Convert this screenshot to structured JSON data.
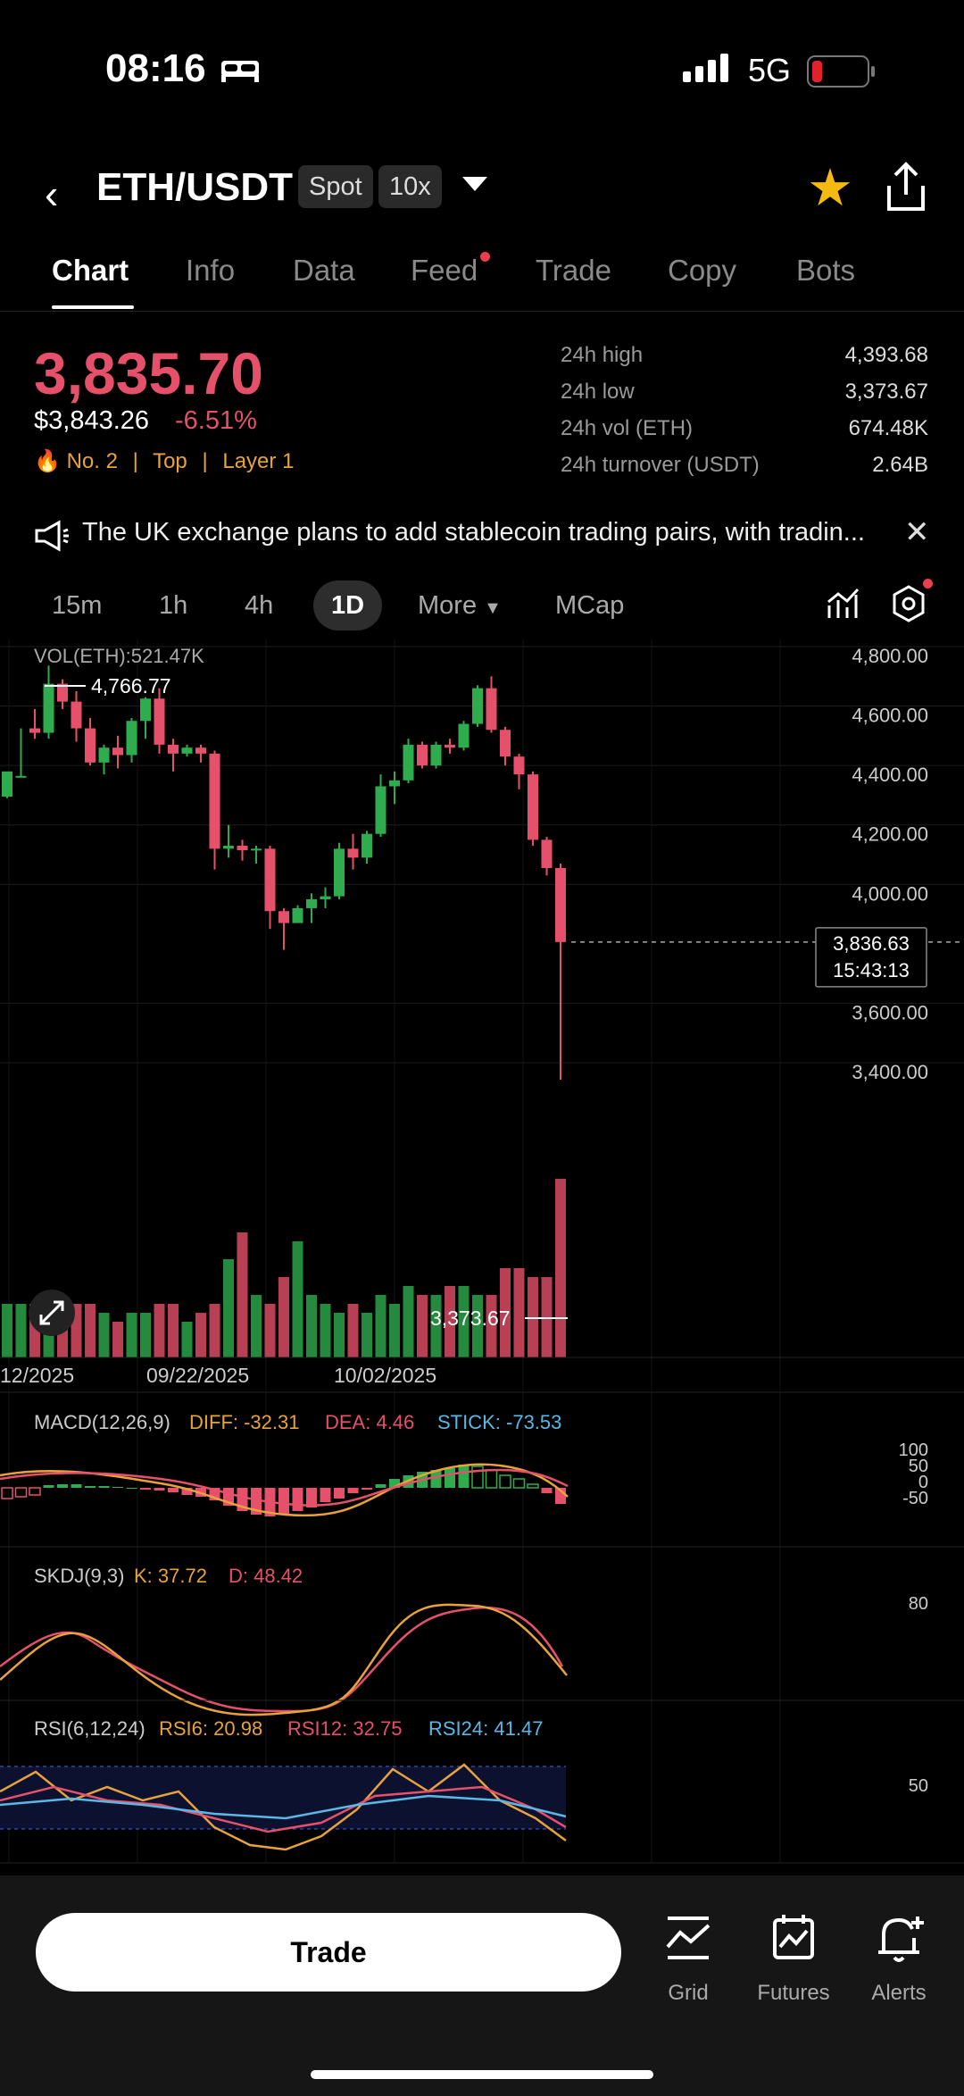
{
  "status": {
    "time": "08:16",
    "network": "5G"
  },
  "header": {
    "pair": "ETH/USDT",
    "market": "Spot",
    "leverage": "10x"
  },
  "tabs": [
    "Chart",
    "Info",
    "Data",
    "Feed",
    "Trade",
    "Copy",
    "Bots"
  ],
  "ticker": {
    "last": "3,835.70",
    "usd": "$3,843.26",
    "change": "-6.51%",
    "rank": "No. 2",
    "tag1": "Top",
    "tag2": "Layer 1",
    "stats": [
      {
        "label": "24h high",
        "value": "4,393.68"
      },
      {
        "label": "24h low",
        "value": "3,373.67"
      },
      {
        "label": "24h vol (ETH)",
        "value": "674.48K"
      },
      {
        "label": "24h turnover (USDT)",
        "value": "2.64B"
      }
    ]
  },
  "news": "The UK exchange plans to add stablecoin trading pairs, with tradin...",
  "timeframes": [
    "15m",
    "1h",
    "4h",
    "1D",
    "More",
    "MCap"
  ],
  "chart_data": {
    "type": "candlestick",
    "vol_label": "VOL(ETH):521.47K",
    "y_ticks": [
      "4,800.00",
      "4,600.00",
      "4,400.00",
      "4,200.00",
      "4,000.00",
      "3,600.00",
      "3,400.00"
    ],
    "y_tick_values": [
      4800,
      4600,
      4400,
      4200,
      4000,
      3600,
      3400
    ],
    "x_ticks": [
      "12/2025",
      "09/22/2025",
      "10/02/2025"
    ],
    "high_label": "4,766.77",
    "low_label": "3,373.67",
    "current_price": "3,836.63",
    "countdown": "15:43:13",
    "candles": [
      [
        4325,
        4410,
        4395,
        4320
      ],
      [
        4390,
        4395,
        4555,
        4390
      ],
      [
        4555,
        4540,
        4620,
        4520
      ],
      [
        4540,
        4705,
        4766,
        4520
      ],
      [
        4705,
        4645,
        4720,
        4620
      ],
      [
        4645,
        4555,
        4680,
        4510
      ],
      [
        4555,
        4440,
        4590,
        4430
      ],
      [
        4440,
        4490,
        4500,
        4400
      ],
      [
        4490,
        4465,
        4530,
        4420
      ],
      [
        4465,
        4580,
        4590,
        4440
      ],
      [
        4580,
        4655,
        4660,
        4520
      ],
      [
        4655,
        4500,
        4690,
        4470
      ],
      [
        4500,
        4470,
        4520,
        4410
      ],
      [
        4470,
        4490,
        4500,
        4460
      ],
      [
        4490,
        4470,
        4500,
        4440
      ],
      [
        4470,
        4150,
        4480,
        4080
      ],
      [
        4150,
        4160,
        4230,
        4120
      ],
      [
        4160,
        4145,
        4180,
        4110
      ],
      [
        4145,
        4150,
        4160,
        4100
      ],
      [
        4150,
        3940,
        4160,
        3880
      ],
      [
        3940,
        3900,
        3950,
        3810
      ],
      [
        3900,
        3950,
        3960,
        3900
      ],
      [
        3950,
        3980,
        4000,
        3900
      ],
      [
        3980,
        3990,
        4020,
        3950
      ],
      [
        3990,
        4150,
        4170,
        3980
      ],
      [
        4150,
        4120,
        4200,
        4080
      ],
      [
        4120,
        4200,
        4210,
        4100
      ],
      [
        4200,
        4360,
        4400,
        4190
      ],
      [
        4360,
        4380,
        4410,
        4300
      ],
      [
        4380,
        4500,
        4520,
        4370
      ],
      [
        4500,
        4430,
        4510,
        4420
      ],
      [
        4430,
        4500,
        4510,
        4420
      ],
      [
        4500,
        4490,
        4520,
        4470
      ],
      [
        4490,
        4570,
        4580,
        4480
      ],
      [
        4570,
        4690,
        4700,
        4560
      ],
      [
        4690,
        4550,
        4730,
        4540
      ],
      [
        4550,
        4460,
        4560,
        4430
      ],
      [
        4460,
        4400,
        4470,
        4350
      ],
      [
        4400,
        4180,
        4410,
        4160
      ],
      [
        4180,
        4085,
        4190,
        4060
      ],
      [
        4085,
        3836,
        4100,
        3373
      ]
    ],
    "volumes": [
      0.3,
      0.3,
      0.3,
      0.3,
      0.25,
      0.3,
      0.3,
      0.25,
      0.2,
      0.25,
      0.25,
      0.3,
      0.3,
      0.2,
      0.25,
      0.3,
      0.55,
      0.7,
      0.35,
      0.3,
      0.45,
      0.65,
      0.35,
      0.3,
      0.25,
      0.3,
      0.25,
      0.35,
      0.3,
      0.4,
      0.35,
      0.35,
      0.4,
      0.4,
      0.35,
      0.35,
      0.5,
      0.5,
      0.45,
      0.45,
      1.0
    ],
    "macd": {
      "label": "MACD(12,26,9)",
      "diff": "DIFF: -32.31",
      "dea": "DEA: 4.46",
      "stick": "STICK: -73.53",
      "ticks": [
        "100",
        "50",
        "0",
        "-50"
      ]
    },
    "skdj": {
      "label": "SKDJ(9,3)",
      "k": "K: 37.72",
      "d": "D: 48.42",
      "tick": "80"
    },
    "rsi": {
      "label": "RSI(6,12,24)",
      "r6": "RSI6: 20.98",
      "r12": "RSI12: 32.75",
      "r24": "RSI24: 41.47",
      "tick": "50"
    }
  },
  "bottom": {
    "trade": "Trade",
    "grid": "Grid",
    "futures": "Futures",
    "alerts": "Alerts"
  },
  "colors": {
    "up": "#2fad4e",
    "down": "#e5506a",
    "accent": "#f5b914"
  }
}
